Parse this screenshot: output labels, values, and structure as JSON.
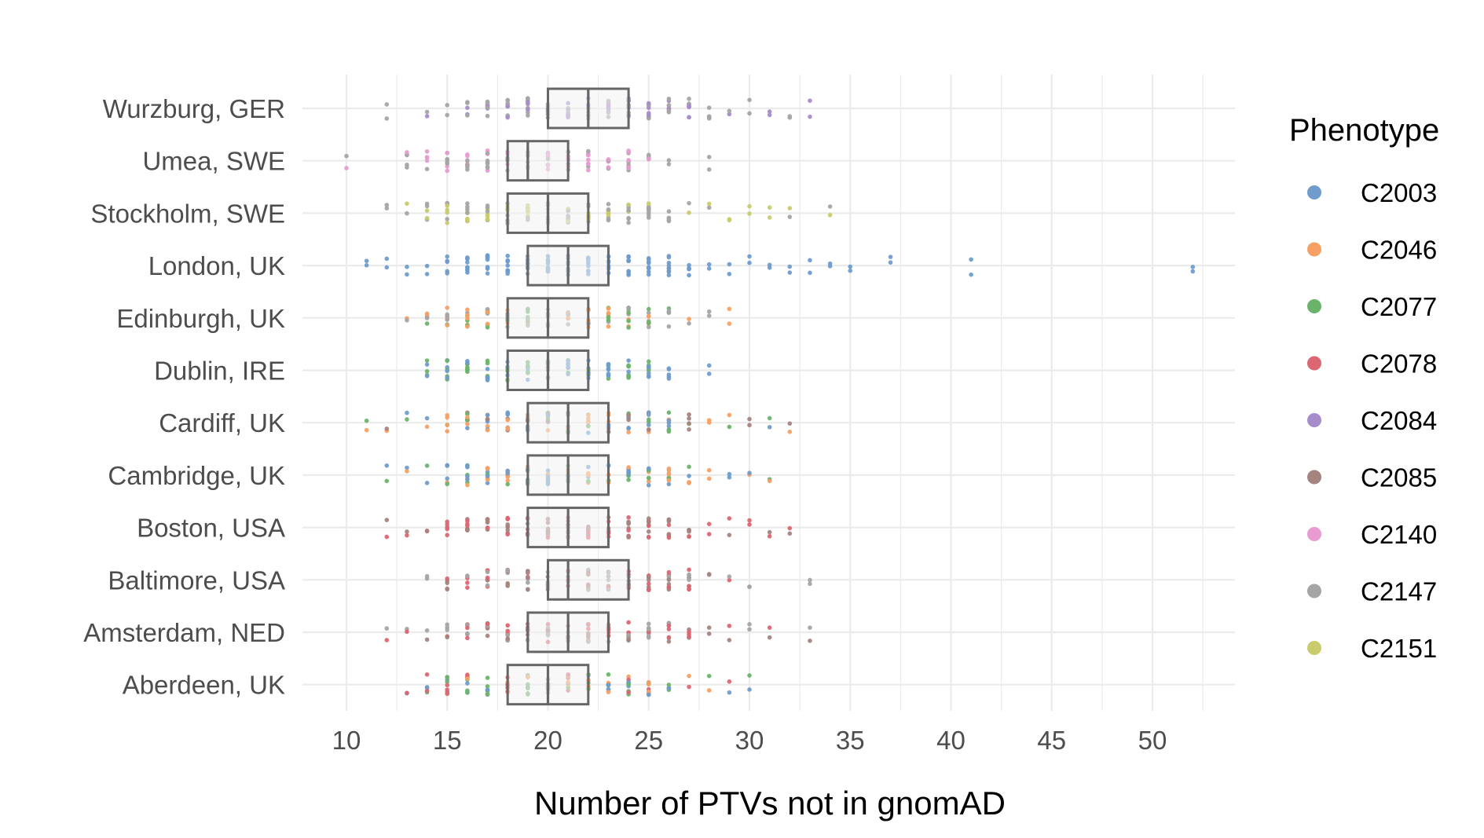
{
  "chart_data": {
    "type": "box-strip",
    "title": "",
    "xlabel": "Number of PTVs not in gnomAD",
    "ylabel": "",
    "xlim": [
      8.6,
      53.4
    ],
    "x_ticks": [
      10,
      15,
      20,
      25,
      30,
      35,
      40,
      45,
      50
    ],
    "grid": true,
    "legend_position": "right",
    "legend": {
      "title": "Phenotype",
      "entries": [
        {
          "name": "C2003",
          "color": "#6f9ccd"
        },
        {
          "name": "C2046",
          "color": "#f7a064"
        },
        {
          "name": "C2077",
          "color": "#6ab46a"
        },
        {
          "name": "C2078",
          "color": "#dc6672"
        },
        {
          "name": "C2084",
          "color": "#a78ccb"
        },
        {
          "name": "C2085",
          "color": "#a58480"
        },
        {
          "name": "C2140",
          "color": "#e79bd0"
        },
        {
          "name": "C2147",
          "color": "#a5a5a5"
        },
        {
          "name": "C2151",
          "color": "#c9cb6c"
        }
      ]
    },
    "categories": [
      "Wurzburg, GER",
      "Umea, SWE",
      "Stockholm, SWE",
      "London, UK",
      "Edinburgh, UK",
      "Dublin, IRE",
      "Cardiff, UK",
      "Cambridge, UK",
      "Boston, USA",
      "Baltimore, USA",
      "Amsterdam, NED",
      "Aberdeen, UK"
    ],
    "boxes": [
      {
        "site": "Wurzburg, GER",
        "q1": 20,
        "median": 22,
        "q3": 24
      },
      {
        "site": "Umea, SWE",
        "q1": 18,
        "median": 19,
        "q3": 21
      },
      {
        "site": "Stockholm, SWE",
        "q1": 18,
        "median": 20,
        "q3": 22
      },
      {
        "site": "London, UK",
        "q1": 19,
        "median": 21,
        "q3": 23
      },
      {
        "site": "Edinburgh, UK",
        "q1": 18,
        "median": 20,
        "q3": 22
      },
      {
        "site": "Dublin, IRE",
        "q1": 18,
        "median": 20,
        "q3": 22
      },
      {
        "site": "Cardiff, UK",
        "q1": 19,
        "median": 21,
        "q3": 23
      },
      {
        "site": "Cambridge, UK",
        "q1": 19,
        "median": 21,
        "q3": 23
      },
      {
        "site": "Boston, USA",
        "q1": 19,
        "median": 21,
        "q3": 23
      },
      {
        "site": "Baltimore, USA",
        "q1": 20,
        "median": 21,
        "q3": 24
      },
      {
        "site": "Amsterdam, NED",
        "q1": 19,
        "median": 21,
        "q3": 23
      },
      {
        "site": "Aberdeen, UK",
        "q1": 18,
        "median": 20,
        "q3": 22
      }
    ],
    "points": [
      {
        "site": "Wurzburg, GER",
        "phenotypes": [
          "C2084",
          "C2147"
        ],
        "values": [
          12,
          14,
          15,
          16,
          17,
          18,
          19,
          20,
          21,
          22,
          23,
          24,
          25,
          26,
          27,
          28,
          29,
          30,
          31,
          32,
          33
        ]
      },
      {
        "site": "Umea, SWE",
        "phenotypes": [
          "C2140",
          "C2147"
        ],
        "values": [
          10,
          13,
          14,
          15,
          16,
          17,
          18,
          19,
          20,
          21,
          22,
          23,
          24,
          25,
          26,
          28
        ]
      },
      {
        "site": "Stockholm, SWE",
        "phenotypes": [
          "C2151",
          "C2147"
        ],
        "values": [
          12,
          13,
          14,
          15,
          16,
          17,
          18,
          19,
          20,
          21,
          22,
          23,
          24,
          25,
          26,
          27,
          28,
          29,
          30,
          31,
          32,
          34
        ]
      },
      {
        "site": "London, UK",
        "phenotypes": [
          "C2003"
        ],
        "values": [
          11,
          12,
          13,
          14,
          15,
          16,
          17,
          18,
          19,
          20,
          21,
          22,
          23,
          24,
          25,
          26,
          27,
          28,
          29,
          30,
          31,
          32,
          33,
          34,
          35,
          37,
          41,
          52
        ]
      },
      {
        "site": "Edinburgh, UK",
        "phenotypes": [
          "C2046",
          "C2077",
          "C2147"
        ],
        "values": [
          13,
          14,
          15,
          16,
          17,
          18,
          19,
          20,
          21,
          22,
          23,
          24,
          25,
          26,
          27,
          28,
          29
        ]
      },
      {
        "site": "Dublin, IRE",
        "phenotypes": [
          "C2077",
          "C2003"
        ],
        "values": [
          14,
          15,
          16,
          17,
          18,
          19,
          20,
          21,
          22,
          23,
          24,
          25,
          26,
          28
        ]
      },
      {
        "site": "Cardiff, UK",
        "phenotypes": [
          "C2003",
          "C2046",
          "C2077",
          "C2085"
        ],
        "values": [
          11,
          12,
          13,
          14,
          15,
          16,
          17,
          18,
          19,
          20,
          21,
          22,
          23,
          24,
          25,
          26,
          27,
          28,
          29,
          30,
          31,
          32
        ]
      },
      {
        "site": "Cambridge, UK",
        "phenotypes": [
          "C2046",
          "C2003",
          "C2077"
        ],
        "values": [
          12,
          13,
          14,
          15,
          16,
          17,
          18,
          19,
          20,
          21,
          22,
          23,
          24,
          25,
          26,
          27,
          28,
          29,
          30,
          31
        ]
      },
      {
        "site": "Boston, USA",
        "phenotypes": [
          "C2085",
          "C2078"
        ],
        "values": [
          12,
          13,
          14,
          15,
          16,
          17,
          18,
          19,
          20,
          21,
          22,
          23,
          24,
          25,
          26,
          27,
          28,
          29,
          30,
          31,
          32
        ]
      },
      {
        "site": "Baltimore, USA",
        "phenotypes": [
          "C2085",
          "C2078",
          "C2147"
        ],
        "values": [
          14,
          15,
          16,
          17,
          18,
          19,
          20,
          21,
          22,
          23,
          24,
          25,
          26,
          27,
          28,
          29,
          30,
          33
        ]
      },
      {
        "site": "Amsterdam, NED",
        "phenotypes": [
          "C2085",
          "C2078",
          "C2147"
        ],
        "values": [
          12,
          13,
          14,
          15,
          16,
          17,
          18,
          19,
          20,
          21,
          22,
          23,
          24,
          25,
          26,
          27,
          28,
          29,
          30,
          31,
          33
        ]
      },
      {
        "site": "Aberdeen, UK",
        "phenotypes": [
          "C2003",
          "C2046",
          "C2077",
          "C2078"
        ],
        "values": [
          13,
          14,
          15,
          16,
          17,
          18,
          19,
          20,
          21,
          22,
          23,
          24,
          25,
          26,
          27,
          28,
          29,
          30
        ]
      }
    ]
  }
}
